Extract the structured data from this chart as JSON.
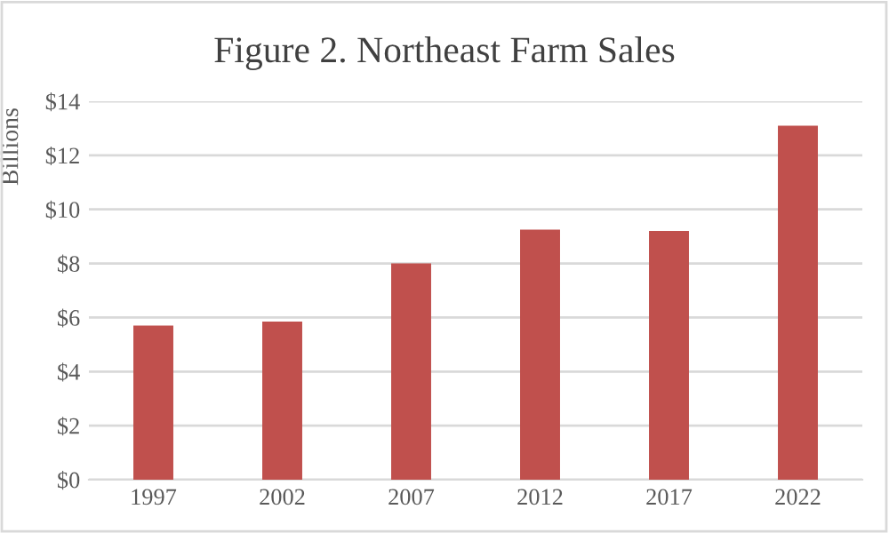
{
  "chart_data": {
    "type": "bar",
    "title": "Figure 2. Northeast Farm Sales",
    "ylabel": "Billions",
    "categories": [
      "1997",
      "2002",
      "2007",
      "2012",
      "2017",
      "2022"
    ],
    "values": [
      5.7,
      5.85,
      8.0,
      9.25,
      9.2,
      13.1
    ],
    "color": "#c0504d",
    "ylim": [
      0,
      14
    ],
    "yticks": [
      {
        "value": 0,
        "label": "$0"
      },
      {
        "value": 2,
        "label": "$2"
      },
      {
        "value": 4,
        "label": "$4"
      },
      {
        "value": 6,
        "label": "$6"
      },
      {
        "value": 8,
        "label": "$8"
      },
      {
        "value": 10,
        "label": "$10"
      },
      {
        "value": 12,
        "label": "$12"
      },
      {
        "value": 14,
        "label": "$14"
      }
    ],
    "grid": "y",
    "legend": false
  }
}
